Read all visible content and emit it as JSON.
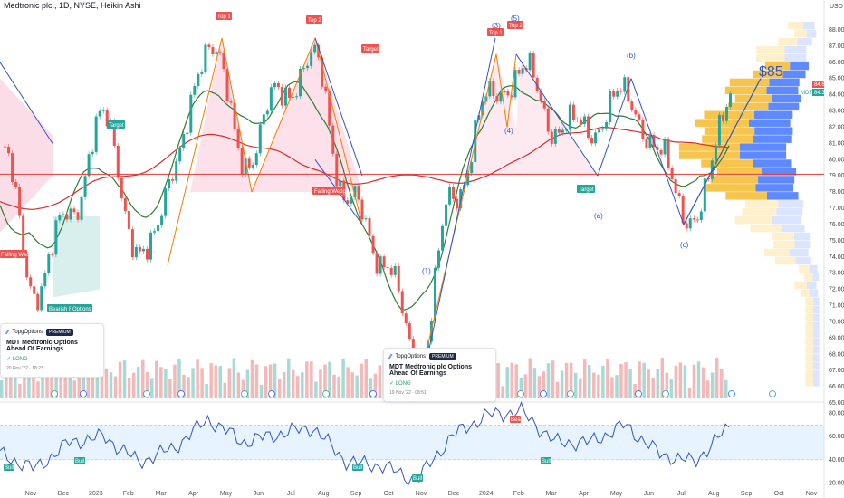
{
  "header": {
    "title": "Medtronic plc., 1D, NYSE, Heikin Ashi",
    "currency": "USD"
  },
  "price_axis": {
    "ticks": [
      "88.00",
      "87.00",
      "86.00",
      "85.00",
      "84.00",
      "83.00",
      "82.00",
      "81.00",
      "80.00",
      "79.00",
      "78.00",
      "77.00",
      "76.00",
      "75.00",
      "74.00",
      "73.00",
      "72.00",
      "71.00",
      "70.00",
      "69.00",
      "68.00",
      "67.00",
      "66.00",
      "65.00"
    ],
    "last_price_label": "84.60",
    "mdt_label": "MDT",
    "mdt_value": "84.39",
    "colors": {
      "last": "#ef5350",
      "mdt": "#26a69a"
    }
  },
  "rsi_axis": {
    "ticks": [
      "80.00",
      "60.00",
      "40.00",
      "20.00"
    ]
  },
  "time_axis": {
    "labels": [
      "Nov",
      "Dec",
      "2023",
      "Feb",
      "Mar",
      "Apr",
      "May",
      "Jun",
      "Jul",
      "Aug",
      "Sep",
      "Oct",
      "Nov",
      "Dec",
      "2024",
      "Feb",
      "Mar",
      "Apr",
      "May",
      "Jun",
      "Jul",
      "Aug",
      "Sep",
      "Oct",
      "Nov"
    ]
  },
  "annotations": {
    "top1_a": "Top 1",
    "top2_a": "Top 2",
    "top1_b": "Top 1",
    "top2_b": "Top 2",
    "target_1": "Target",
    "target_2": "Target",
    "target_3": "Target",
    "falling_wedge_1": "Falling Wedge",
    "falling_wedge_2": "Falling Wedge",
    "bearish_flag": "Bearish Flag",
    "options": "Options 1",
    "wave_1": "(1)",
    "wave_3": "(3)",
    "wave_4": "(4)",
    "wave_5": "(5)",
    "wave_a": "(a)",
    "wave_b": "(b)",
    "wave_c": "(c)",
    "price_target": "$85",
    "bull_1": "Bull",
    "bull_2": "Bull",
    "bull_3": "Bull",
    "bull_4": "Bull",
    "bull_5": "Bull",
    "bear_1": "Bear"
  },
  "ideas": [
    {
      "source": "TopgOptions",
      "badge": "PREMIUM",
      "headline": "MDT Medtronic Options Ahead Of Earnings",
      "direction": "LONG",
      "date": "20 Nov '22 · 18:23"
    },
    {
      "source": "TopgOptions",
      "badge": "PREMIUM",
      "headline": "MDT Medtronic plc Options Ahead Of Earnings",
      "direction": "LONG",
      "date": "19 Nov '22 · 08:51"
    }
  ],
  "chart_data": [
    {
      "type": "line",
      "name": "price",
      "title": "Medtronic plc., 1D, NYSE, Heikin Ashi",
      "ylim": [
        65,
        88.5
      ],
      "x": [
        "Nov",
        "Dec",
        "2023",
        "Feb",
        "Mar",
        "Apr",
        "May",
        "Jun",
        "Jul",
        "Aug",
        "Sep",
        "Oct",
        "Nov",
        "Dec",
        "2024",
        "Feb",
        "Mar",
        "Apr",
        "May",
        "Jun",
        "Jul",
        "Aug"
      ],
      "series": [
        {
          "values": [
            80.5,
            72.0,
            77.0,
            82.5,
            73.5,
            79.5,
            87.5,
            80.0,
            84.0,
            86.0,
            77.5,
            74.0,
            67.5,
            77.5,
            83.5,
            85.5,
            82.0,
            82.0,
            84.0,
            80.0,
            76.0,
            84.4
          ]
        }
      ],
      "horizontal_line": 79.1,
      "volume_profile": true
    },
    {
      "type": "line",
      "name": "rsi",
      "ylim": [
        15,
        85
      ],
      "x": [
        "Nov",
        "Dec",
        "2023",
        "Feb",
        "Mar",
        "Apr",
        "May",
        "Jun",
        "Jul",
        "Aug",
        "Sep",
        "Oct",
        "Nov",
        "Dec",
        "2024",
        "Feb",
        "Mar",
        "Apr",
        "May",
        "Jun",
        "Jul",
        "Aug"
      ],
      "series": [
        {
          "values": [
            45,
            32,
            55,
            60,
            38,
            50,
            75,
            55,
            62,
            68,
            38,
            35,
            22,
            60,
            78,
            82,
            55,
            55,
            70,
            45,
            38,
            68
          ]
        }
      ],
      "band": [
        40,
        70
      ]
    }
  ]
}
